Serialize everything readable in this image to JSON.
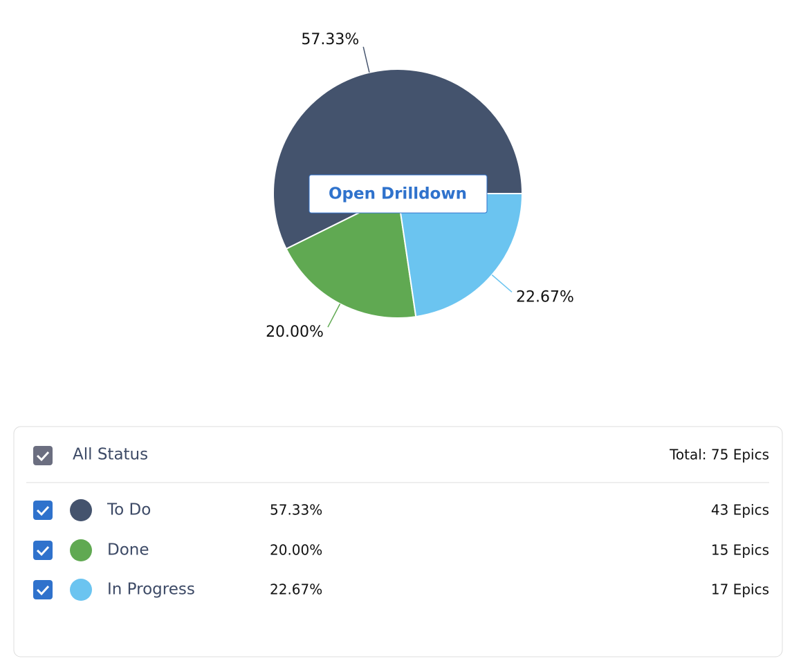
{
  "chart_data": {
    "type": "pie",
    "categories": [
      "To Do",
      "Done",
      "In Progress"
    ],
    "values": [
      57.33,
      20.0,
      22.67
    ],
    "value_labels": [
      "57.33%",
      "20.00%",
      "22.67%"
    ],
    "colors": [
      "#44536d",
      "#60a952",
      "#6bc4f0"
    ]
  },
  "button": "Open Drilldown",
  "legend": {
    "header": {
      "label": "All Status",
      "total": "Total: 75 Epics"
    },
    "rows": [
      {
        "count": "43 Epics"
      },
      {
        "count": "15 Epics"
      },
      {
        "count": "17 Epics"
      }
    ]
  }
}
